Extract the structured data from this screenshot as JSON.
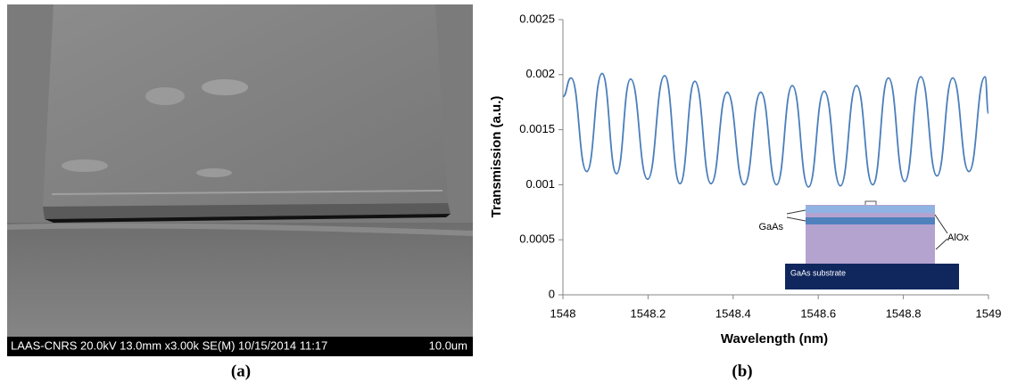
{
  "image_a": {
    "info_bar": "LAAS-CNRS 20.0kV 13.0mm x3.00k SE(M) 10/15/2014 11:17",
    "scale_label": "10.0um",
    "caption": "(a)"
  },
  "chart_data": {
    "type": "line",
    "caption": "(b)",
    "x_label": "Wavelength (nm)",
    "y_label": "Transmission (a.u.)",
    "x": [
      1548,
      1548.019,
      1548.056,
      1548.092,
      1548.126,
      1548.159,
      1548.199,
      1548.239,
      1548.275,
      1548.31,
      1548.348,
      1548.386,
      1548.426,
      1548.465,
      1548.502,
      1548.539,
      1548.577,
      1548.614,
      1548.652,
      1548.69,
      1548.728,
      1548.765,
      1548.803,
      1548.841,
      1548.879,
      1548.916,
      1548.954,
      1548.992,
      1549
    ],
    "values": [
      0.0018,
      0.00197,
      0.00112,
      0.00201,
      0.0011,
      0.00196,
      0.00105,
      0.00199,
      0.00101,
      0.00194,
      0.00101,
      0.00184,
      0.001,
      0.00184,
      0.001,
      0.0019,
      0.00098,
      0.00185,
      0.00099,
      0.0019,
      0.001,
      0.00197,
      0.00103,
      0.00198,
      0.00108,
      0.00197,
      0.00112,
      0.00198,
      0.00165
    ],
    "color": "#4a7ebb",
    "xlim": [
      1548,
      1549
    ],
    "xticks": [
      1548,
      1548.2,
      1548.4,
      1548.6,
      1548.8,
      1549
    ],
    "ylim": [
      0,
      0.0025
    ],
    "yticks": [
      0,
      0.0005,
      0.001,
      0.0015,
      0.002,
      0.0025
    ],
    "grid": false,
    "inset_labels": [
      "GaAs",
      "AlOx",
      "GaAs substrate"
    ]
  }
}
